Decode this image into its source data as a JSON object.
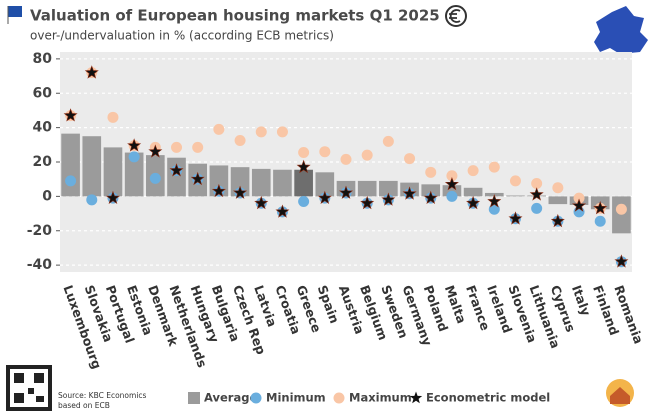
{
  "chart_data": {
    "type": "bar",
    "title": "Valuation of European housing markets Q1 2025",
    "subtitle": "over-/undervaluation in % (according ECB metrics)",
    "source": [
      "Source: KBC Economics",
      "based on ECB"
    ],
    "categories": [
      "Luxembourg",
      "Slovakia",
      "Portugal",
      "Estonia",
      "Denmark",
      "Netherlands",
      "Hungary",
      "Bulgaria",
      "Czech Rep",
      "Latvia",
      "Croatia",
      "Greece",
      "Spain",
      "Austria",
      "Belgium",
      "Sweden",
      "Germany",
      "Poland",
      "Malta",
      "France",
      "Ireland",
      "Slovenia",
      "Lithuania",
      "Cyprus",
      "Italy",
      "Finland",
      "Romania"
    ],
    "series": [
      {
        "name": "Average",
        "mark": "bar",
        "color": "#9b9b9b",
        "colors": [
          "#9b9b9b",
          "#9b9b9b",
          "#9b9b9b",
          "#9b9b9b",
          "#9b9b9b",
          "#9b9b9b",
          "#9b9b9b",
          "#9b9b9b",
          "#9b9b9b",
          "#9b9b9b",
          "#9b9b9b",
          "#6e6e6e",
          "#9b9b9b",
          "#9b9b9b",
          "#9b9b9b",
          "#9b9b9b",
          "#9b9b9b",
          "#9b9b9b",
          "#9b9b9b",
          "#9b9b9b",
          "#9b9b9b",
          "#9b9b9b",
          "#9b9b9b",
          "#9b9b9b",
          "#9b9b9b",
          "#9b9b9b",
          "#9b9b9b"
        ],
        "values": [
          36.5,
          35,
          28.5,
          25.5,
          24,
          22.5,
          19,
          18,
          17,
          16,
          15.5,
          15.5,
          14,
          9,
          9,
          9,
          8,
          7,
          6.5,
          5,
          2,
          0.5,
          0.5,
          -4.5,
          -5,
          -7.5,
          -21.5
        ]
      },
      {
        "name": "Minimum",
        "mark": "dot",
        "color": "#6aaede",
        "values": [
          9,
          -2,
          -1,
          23,
          10.5,
          15,
          10,
          3,
          2,
          -4,
          -9,
          -3,
          -1,
          2,
          -4,
          -2,
          1.5,
          -1,
          0,
          -4,
          -7.5,
          -13,
          -7,
          -14.5,
          -9,
          -14.5,
          -38
        ]
      },
      {
        "name": "Maximum",
        "mark": "dot",
        "color": "#f9c6a6",
        "values": [
          47,
          72,
          46,
          29.5,
          28.5,
          28.5,
          28.5,
          39,
          32.5,
          37.5,
          37.5,
          25.5,
          26,
          21.5,
          24,
          32,
          22,
          14,
          12,
          15,
          17,
          9,
          7.5,
          5,
          -1,
          -7,
          -7.5
        ]
      },
      {
        "name": "Econometric model",
        "mark": "star",
        "color": "#111111",
        "values": [
          47,
          72,
          -1,
          29.5,
          26,
          15,
          10,
          3,
          2,
          -4,
          -9,
          17,
          -1,
          2,
          -4,
          -2,
          1.5,
          -1,
          7,
          -4,
          -3,
          -13,
          1,
          -14.5,
          -5.5,
          -7,
          -38
        ]
      }
    ],
    "ylim": [
      -44,
      84
    ],
    "yticks": [
      -40,
      -20,
      0,
      20,
      40,
      60,
      80
    ],
    "grid": true
  }
}
